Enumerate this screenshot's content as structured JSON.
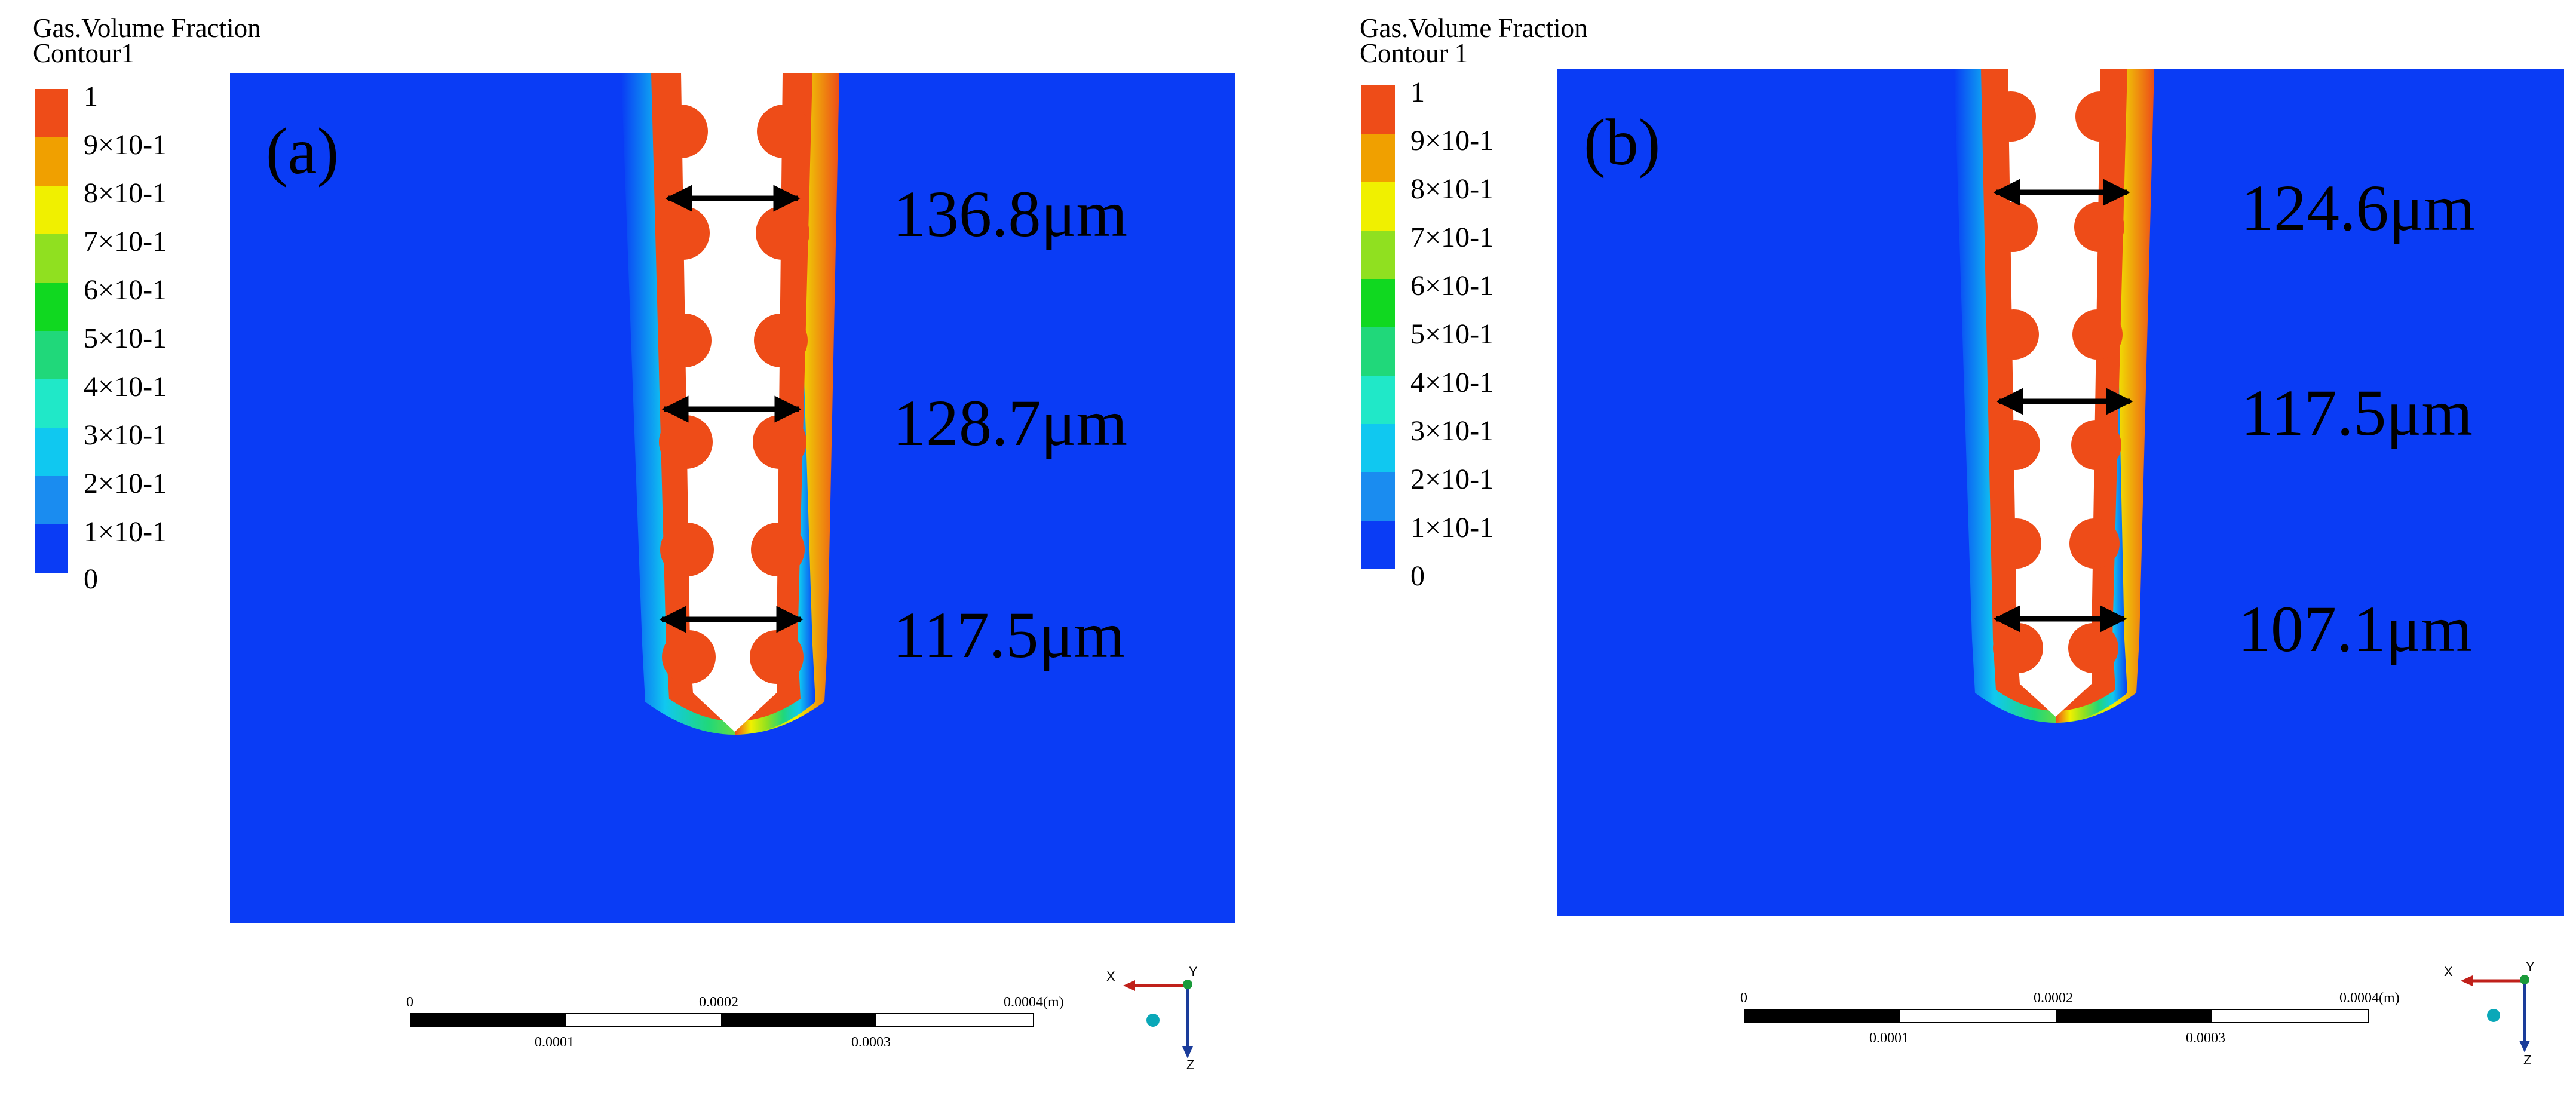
{
  "legend_colors": [
    "#0a3cf5",
    "#1a8cf0",
    "#10c8f0",
    "#20e8c8",
    "#20d87a",
    "#10d820",
    "#90e020",
    "#f0f000",
    "#f0a000",
    "#ee4c18"
  ],
  "colors": {
    "background_field": "#0a3cf5",
    "channel_core": "#ee4c18",
    "arrow": "#000000"
  },
  "panels": [
    {
      "legend": {
        "title_line1": "Gas.Volume Fraction",
        "title_line2": "Contour1",
        "ticks": [
          "1",
          "9×10-1",
          "8×10-1",
          "7×10-1",
          "6×10-1",
          "5×10-1",
          "4×10-1",
          "3×10-1",
          "2×10-1",
          "1×10-1",
          "0"
        ]
      },
      "label": "(a)",
      "measurements": [
        "136.8μm",
        "128.7μm",
        "117.5μm"
      ],
      "scale_bar": {
        "top": [
          "0",
          "0.0002",
          "0.0004(m)"
        ],
        "bottom": [
          "0.0001",
          "0.0003"
        ]
      },
      "axes": {
        "x": "X",
        "y": "Y",
        "z": "Z"
      }
    },
    {
      "legend": {
        "title_line1": "Gas.Volume Fraction",
        "title_line2": "Contour 1",
        "ticks": [
          "1",
          "9×10-1",
          "8×10-1",
          "7×10-1",
          "6×10-1",
          "5×10-1",
          "4×10-1",
          "3×10-1",
          "2×10-1",
          "1×10-1",
          "0"
        ]
      },
      "label": "(b)",
      "measurements": [
        "124.6μm",
        "117.5μm",
        "107.1μm"
      ],
      "scale_bar": {
        "top": [
          "0",
          "0.0002",
          "0.0004(m)"
        ],
        "bottom": [
          "0.0001",
          "0.0003"
        ]
      },
      "axes": {
        "x": "X",
        "y": "Y",
        "z": "Z"
      }
    }
  ]
}
